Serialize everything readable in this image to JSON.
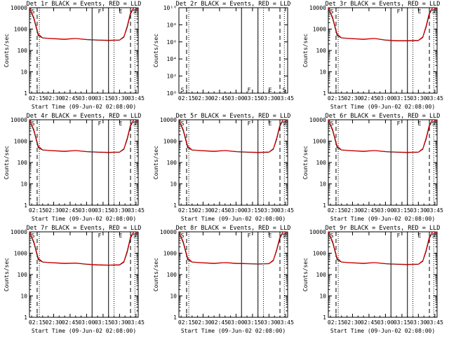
{
  "figure": {
    "start_date_label": "Start Time (09-Jun-02 02:08:00)"
  },
  "chart_data": [
    {
      "type": "line",
      "title": "Det 1r BLACK = Events, RED = LLD",
      "xlabel": "Start Time (09-Jun-02 02:08:00)",
      "ylabel": "Counts/sec",
      "yscale": "log",
      "ylim": [
        1,
        10000
      ],
      "xlim": [
        "02:08",
        "03:47"
      ],
      "x_ticks": [
        "02:15",
        "02:30",
        "02:45",
        "03:00",
        "03:15",
        "03:30",
        "03:45"
      ],
      "y_ticks": [
        "1",
        "10",
        "100",
        "1000",
        "10000"
      ],
      "markers": [
        "S",
        "F",
        "E",
        "S"
      ],
      "x": [
        "02:08",
        "02:12",
        "02:16",
        "02:20",
        "02:30",
        "02:40",
        "02:50",
        "03:00",
        "03:10",
        "03:20",
        "03:30",
        "03:34",
        "03:37",
        "03:40",
        "03:43",
        "03:47"
      ],
      "series": [
        {
          "name": "BLACK = Events",
          "color": "#000000",
          "values": [
            10000,
            3000,
            500,
            380,
            350,
            330,
            360,
            320,
            300,
            290,
            300,
            420,
            1200,
            5000,
            10000,
            10000
          ]
        },
        {
          "name": "RED = LLD",
          "color": "#ff0000",
          "values": [
            10000,
            3500,
            600,
            390,
            360,
            340,
            370,
            330,
            310,
            300,
            310,
            450,
            1400,
            6000,
            10000,
            10000
          ]
        }
      ],
      "vlines": [
        {
          "x": "02:15",
          "style": "dashed"
        },
        {
          "x": "02:17",
          "style": "dotted"
        },
        {
          "x": "03:05",
          "style": "solid"
        },
        {
          "x": "03:20",
          "style": "solid"
        },
        {
          "x": "03:25",
          "style": "dotted"
        },
        {
          "x": "03:40",
          "style": "dashed"
        },
        {
          "x": "03:44",
          "style": "dotted"
        }
      ]
    },
    {
      "type": "line",
      "title": "Det 2r BLACK = Events, RED = LLD",
      "xlabel": "",
      "ylabel": "Counts/sec",
      "yscale": "log",
      "ylim": [
        1,
        10000000000
      ],
      "xlim": [
        "02:08",
        "03:47"
      ],
      "x_ticks": [
        "02:15",
        "02:30",
        "02:45",
        "03:00",
        "03:15",
        "03:30",
        "03:45"
      ],
      "y_ticks": [
        "10⁰",
        "10²",
        "10⁴",
        "10⁶",
        "10⁸",
        "10¹⁰"
      ],
      "markers": [
        "S",
        "F",
        "E",
        "S"
      ],
      "x": [],
      "series": [],
      "vlines": [
        {
          "x": "02:15",
          "style": "dashed"
        },
        {
          "x": "02:17",
          "style": "dotted"
        },
        {
          "x": "03:05",
          "style": "solid"
        },
        {
          "x": "03:20",
          "style": "solid"
        },
        {
          "x": "03:25",
          "style": "dotted"
        },
        {
          "x": "03:40",
          "style": "dashed"
        },
        {
          "x": "03:44",
          "style": "dotted"
        }
      ]
    },
    {
      "type": "line",
      "title": "Det 3r BLACK = Events, RED = LLD",
      "xlabel": "Start Time (09-Jun-02 02:08:00)",
      "ylabel": "Counts/sec",
      "yscale": "log",
      "ylim": [
        1,
        10000
      ],
      "xlim": [
        "02:08",
        "03:47"
      ],
      "x_ticks": [
        "02:15",
        "02:30",
        "02:45",
        "03:00",
        "03:15",
        "03:30",
        "03:45"
      ],
      "y_ticks": [
        "1",
        "10",
        "100",
        "1000",
        "10000"
      ],
      "markers": [
        "S",
        "F",
        "E",
        "S"
      ],
      "x": [
        "02:08",
        "02:12",
        "02:16",
        "02:20",
        "02:30",
        "02:40",
        "02:50",
        "03:00",
        "03:10",
        "03:20",
        "03:30",
        "03:34",
        "03:37",
        "03:40",
        "03:43",
        "03:47"
      ],
      "series": [
        {
          "name": "BLACK = Events",
          "color": "#000000",
          "values": [
            10000,
            3000,
            500,
            380,
            350,
            330,
            360,
            300,
            280,
            280,
            290,
            400,
            1200,
            5000,
            10000,
            10000
          ]
        },
        {
          "name": "RED = LLD",
          "color": "#ff0000",
          "values": [
            10000,
            3500,
            600,
            390,
            360,
            340,
            370,
            310,
            290,
            290,
            300,
            430,
            1400,
            6000,
            10000,
            10000
          ]
        }
      ],
      "vlines": [
        {
          "x": "02:15",
          "style": "dashed"
        },
        {
          "x": "02:17",
          "style": "dotted"
        },
        {
          "x": "03:05",
          "style": "solid"
        },
        {
          "x": "03:20",
          "style": "solid"
        },
        {
          "x": "03:25",
          "style": "dotted"
        },
        {
          "x": "03:40",
          "style": "dashed"
        },
        {
          "x": "03:44",
          "style": "dotted"
        }
      ]
    },
    {
      "type": "line",
      "title": "Det 4r BLACK = Events, RED = LLD",
      "xlabel": "Start Time (09-Jun-02 02:08:00)",
      "ylabel": "Counts/sec",
      "yscale": "log",
      "ylim": [
        1,
        10000
      ],
      "xlim": [
        "02:08",
        "03:47"
      ],
      "x_ticks": [
        "02:15",
        "02:30",
        "02:45",
        "03:00",
        "03:15",
        "03:30",
        "03:45"
      ],
      "y_ticks": [
        "1",
        "10",
        "100",
        "1000",
        "10000"
      ],
      "markers": [
        "S",
        "F",
        "E",
        "S"
      ],
      "x": [
        "02:08",
        "02:12",
        "02:16",
        "02:20",
        "02:30",
        "02:40",
        "02:50",
        "03:00",
        "03:10",
        "03:20",
        "03:30",
        "03:34",
        "03:37",
        "03:40",
        "03:43",
        "03:47"
      ],
      "series": [
        {
          "name": "BLACK = Events",
          "color": "#000000",
          "values": [
            10000,
            3000,
            500,
            380,
            350,
            330,
            360,
            320,
            300,
            290,
            300,
            420,
            1200,
            5000,
            10000,
            10000
          ]
        },
        {
          "name": "RED = LLD",
          "color": "#ff0000",
          "values": [
            10000,
            3500,
            600,
            390,
            360,
            340,
            370,
            330,
            310,
            300,
            310,
            450,
            1400,
            6000,
            10000,
            10000
          ]
        }
      ],
      "vlines": [
        {
          "x": "02:15",
          "style": "dashed"
        },
        {
          "x": "02:17",
          "style": "dotted"
        },
        {
          "x": "03:05",
          "style": "solid"
        },
        {
          "x": "03:20",
          "style": "solid"
        },
        {
          "x": "03:25",
          "style": "dotted"
        },
        {
          "x": "03:40",
          "style": "dashed"
        },
        {
          "x": "03:44",
          "style": "dotted"
        }
      ]
    },
    {
      "type": "line",
      "title": "Det 5r BLACK = Events, RED = LLD",
      "xlabel": "Start Time (09-Jun-02 02:08:00)",
      "ylabel": "Counts/sec",
      "yscale": "log",
      "ylim": [
        1,
        10000
      ],
      "xlim": [
        "02:08",
        "03:47"
      ],
      "x_ticks": [
        "02:15",
        "02:30",
        "02:45",
        "03:00",
        "03:15",
        "03:30",
        "03:45"
      ],
      "y_ticks": [
        "1",
        "10",
        "100",
        "1000",
        "10000"
      ],
      "markers": [
        "S",
        "F",
        "E",
        "S"
      ],
      "x": [
        "02:08",
        "02:12",
        "02:16",
        "02:20",
        "02:30",
        "02:40",
        "02:50",
        "03:00",
        "03:10",
        "03:20",
        "03:30",
        "03:34",
        "03:37",
        "03:40",
        "03:43",
        "03:47"
      ],
      "series": [
        {
          "name": "BLACK = Events",
          "color": "#000000",
          "values": [
            10000,
            3000,
            500,
            380,
            350,
            330,
            360,
            320,
            300,
            290,
            300,
            420,
            1200,
            5000,
            10000,
            10000
          ]
        },
        {
          "name": "RED = LLD",
          "color": "#ff0000",
          "values": [
            10000,
            3500,
            600,
            390,
            360,
            340,
            370,
            330,
            310,
            300,
            310,
            450,
            1400,
            6000,
            10000,
            10000
          ]
        }
      ],
      "vlines": [
        {
          "x": "02:15",
          "style": "dashed"
        },
        {
          "x": "02:17",
          "style": "dotted"
        },
        {
          "x": "03:05",
          "style": "solid"
        },
        {
          "x": "03:20",
          "style": "solid"
        },
        {
          "x": "03:25",
          "style": "dotted"
        },
        {
          "x": "03:40",
          "style": "dashed"
        },
        {
          "x": "03:44",
          "style": "dotted"
        }
      ]
    },
    {
      "type": "line",
      "title": "Det 6r BLACK = Events, RED = LLD",
      "xlabel": "Start Time (09-Jun-02 02:08:00)",
      "ylabel": "Counts/sec",
      "yscale": "log",
      "ylim": [
        1,
        10000
      ],
      "xlim": [
        "02:08",
        "03:47"
      ],
      "x_ticks": [
        "02:15",
        "02:30",
        "02:45",
        "03:00",
        "03:15",
        "03:30",
        "03:45"
      ],
      "y_ticks": [
        "1",
        "10",
        "100",
        "1000",
        "10000"
      ],
      "markers": [
        "S",
        "F",
        "E",
        "S"
      ],
      "x": [
        "02:08",
        "02:12",
        "02:16",
        "02:20",
        "02:30",
        "02:40",
        "02:50",
        "03:00",
        "03:10",
        "03:20",
        "03:30",
        "03:34",
        "03:37",
        "03:40",
        "03:43",
        "03:47"
      ],
      "series": [
        {
          "name": "BLACK = Events",
          "color": "#000000",
          "values": [
            10000,
            3000,
            500,
            380,
            350,
            330,
            360,
            320,
            300,
            290,
            300,
            420,
            1200,
            5000,
            10000,
            10000
          ]
        },
        {
          "name": "RED = LLD",
          "color": "#ff0000",
          "values": [
            10000,
            3500,
            600,
            390,
            360,
            340,
            370,
            330,
            310,
            300,
            310,
            450,
            1400,
            6000,
            10000,
            10000
          ]
        }
      ],
      "vlines": [
        {
          "x": "02:15",
          "style": "dashed"
        },
        {
          "x": "02:17",
          "style": "dotted"
        },
        {
          "x": "03:05",
          "style": "solid"
        },
        {
          "x": "03:20",
          "style": "solid"
        },
        {
          "x": "03:25",
          "style": "dotted"
        },
        {
          "x": "03:40",
          "style": "dashed"
        },
        {
          "x": "03:44",
          "style": "dotted"
        }
      ]
    },
    {
      "type": "line",
      "title": "Det 7r BLACK = Events, RED = LLD",
      "xlabel": "Start Time (09-Jun-02 02:08:00)",
      "ylabel": "Counts/sec",
      "yscale": "log",
      "ylim": [
        1,
        10000
      ],
      "xlim": [
        "02:08",
        "03:47"
      ],
      "x_ticks": [
        "02:15",
        "02:30",
        "02:45",
        "03:00",
        "03:15",
        "03:30",
        "03:45"
      ],
      "y_ticks": [
        "1",
        "10",
        "100",
        "1000",
        "10000"
      ],
      "markers": [
        "S",
        "F",
        "E",
        "S"
      ],
      "x": [
        "02:08",
        "02:12",
        "02:16",
        "02:20",
        "02:30",
        "02:40",
        "02:50",
        "03:00",
        "03:10",
        "03:20",
        "03:30",
        "03:34",
        "03:37",
        "03:40",
        "03:43",
        "03:47"
      ],
      "series": [
        {
          "name": "BLACK = Events",
          "color": "#000000",
          "values": [
            10000,
            3000,
            500,
            380,
            350,
            330,
            340,
            300,
            280,
            270,
            280,
            380,
            1100,
            5000,
            10000,
            10000
          ]
        },
        {
          "name": "RED = LLD",
          "color": "#ff0000",
          "values": [
            10000,
            3500,
            600,
            390,
            360,
            340,
            350,
            310,
            290,
            280,
            290,
            410,
            1300,
            6000,
            10000,
            10000
          ]
        }
      ],
      "vlines": [
        {
          "x": "02:15",
          "style": "dashed"
        },
        {
          "x": "02:17",
          "style": "dotted"
        },
        {
          "x": "03:05",
          "style": "solid"
        },
        {
          "x": "03:20",
          "style": "solid"
        },
        {
          "x": "03:25",
          "style": "dotted"
        },
        {
          "x": "03:40",
          "style": "dashed"
        },
        {
          "x": "03:44",
          "style": "dotted"
        }
      ]
    },
    {
      "type": "line",
      "title": "Det 8r BLACK = Events, RED = LLD",
      "xlabel": "Start Time (09-Jun-02 02:08:00)",
      "ylabel": "Counts/sec",
      "yscale": "log",
      "ylim": [
        1,
        10000
      ],
      "xlim": [
        "02:08",
        "03:47"
      ],
      "x_ticks": [
        "02:15",
        "02:30",
        "02:45",
        "03:00",
        "03:15",
        "03:30",
        "03:45"
      ],
      "y_ticks": [
        "1",
        "10",
        "100",
        "1000",
        "10000"
      ],
      "markers": [
        "S",
        "F",
        "E",
        "S"
      ],
      "x": [
        "02:08",
        "02:12",
        "02:16",
        "02:20",
        "02:30",
        "02:40",
        "02:50",
        "03:00",
        "03:10",
        "03:20",
        "03:30",
        "03:34",
        "03:37",
        "03:40",
        "03:43",
        "03:47"
      ],
      "series": [
        {
          "name": "BLACK = Events",
          "color": "#000000",
          "values": [
            10000,
            3000,
            500,
            380,
            350,
            330,
            360,
            330,
            320,
            310,
            320,
            450,
            1300,
            5000,
            10000,
            10000
          ]
        },
        {
          "name": "RED = LLD",
          "color": "#ff0000",
          "values": [
            10000,
            3500,
            600,
            390,
            360,
            340,
            370,
            340,
            330,
            320,
            330,
            480,
            1500,
            6000,
            10000,
            10000
          ]
        }
      ],
      "vlines": [
        {
          "x": "02:15",
          "style": "dashed"
        },
        {
          "x": "02:17",
          "style": "dotted"
        },
        {
          "x": "03:05",
          "style": "solid"
        },
        {
          "x": "03:20",
          "style": "solid"
        },
        {
          "x": "03:25",
          "style": "dotted"
        },
        {
          "x": "03:40",
          "style": "dashed"
        },
        {
          "x": "03:44",
          "style": "dotted"
        }
      ]
    },
    {
      "type": "line",
      "title": "Det 9r BLACK = Events, RED = LLD",
      "xlabel": "Start Time (09-Jun-02 02:08:00)",
      "ylabel": "Counts/sec",
      "yscale": "log",
      "ylim": [
        1,
        10000
      ],
      "xlim": [
        "02:08",
        "03:47"
      ],
      "x_ticks": [
        "02:15",
        "02:30",
        "02:45",
        "03:00",
        "03:15",
        "03:30",
        "03:45"
      ],
      "y_ticks": [
        "1",
        "10",
        "100",
        "1000",
        "10000"
      ],
      "markers": [
        "S",
        "F",
        "E",
        "S"
      ],
      "x": [
        "02:08",
        "02:12",
        "02:16",
        "02:20",
        "02:30",
        "02:40",
        "02:50",
        "03:00",
        "03:10",
        "03:20",
        "03:30",
        "03:34",
        "03:37",
        "03:40",
        "03:43",
        "03:47"
      ],
      "series": [
        {
          "name": "BLACK = Events",
          "color": "#000000",
          "values": [
            10000,
            3000,
            500,
            380,
            350,
            330,
            360,
            320,
            300,
            290,
            300,
            420,
            1200,
            5000,
            10000,
            10000
          ]
        },
        {
          "name": "RED = LLD",
          "color": "#ff0000",
          "values": [
            10000,
            3500,
            600,
            390,
            360,
            340,
            370,
            330,
            310,
            300,
            310,
            450,
            1400,
            6000,
            10000,
            10000
          ]
        }
      ],
      "vlines": [
        {
          "x": "02:15",
          "style": "dashed"
        },
        {
          "x": "02:17",
          "style": "dotted"
        },
        {
          "x": "03:05",
          "style": "solid"
        },
        {
          "x": "03:20",
          "style": "solid"
        },
        {
          "x": "03:25",
          "style": "dotted"
        },
        {
          "x": "03:40",
          "style": "dashed"
        },
        {
          "x": "03:44",
          "style": "dotted"
        }
      ]
    }
  ]
}
